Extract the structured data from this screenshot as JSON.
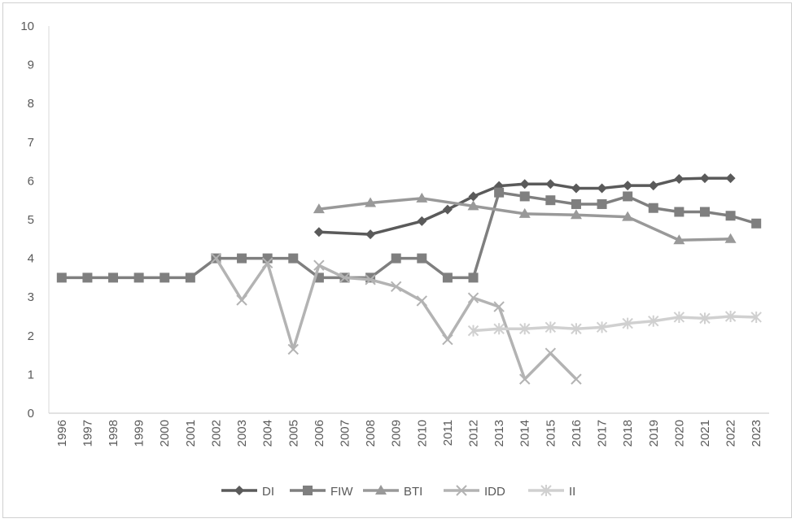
{
  "chart_data": {
    "type": "line",
    "title": "",
    "xlabel": "",
    "ylabel": "",
    "ylim": [
      0,
      10
    ],
    "yticks": [
      0,
      1,
      2,
      3,
      4,
      5,
      6,
      7,
      8,
      9,
      10
    ],
    "grid": false,
    "legend_position": "bottom",
    "categories": [
      "1996",
      "1997",
      "1998",
      "1999",
      "2000",
      "2001",
      "2002",
      "2003",
      "2004",
      "2005",
      "2006",
      "2007",
      "2008",
      "2009",
      "2010",
      "2011",
      "2012",
      "2013",
      "2014",
      "2015",
      "2016",
      "2017",
      "2018",
      "2019",
      "2020",
      "2021",
      "2022",
      "2023"
    ],
    "series": [
      {
        "name": "DI",
        "marker": "diamond",
        "color": "#5a5a5a",
        "values": [
          null,
          null,
          null,
          null,
          null,
          null,
          null,
          null,
          null,
          null,
          4.68,
          null,
          4.62,
          null,
          4.96,
          5.26,
          5.6,
          5.87,
          5.92,
          5.92,
          5.81,
          5.81,
          5.88,
          5.88,
          6.05,
          6.07,
          6.07,
          null
        ]
      },
      {
        "name": "FIW",
        "marker": "square",
        "color": "#7f7f7f",
        "values": [
          3.5,
          3.5,
          3.5,
          3.5,
          3.5,
          3.5,
          4,
          4,
          4,
          4,
          3.5,
          3.5,
          3.5,
          4,
          4,
          3.5,
          3.5,
          5.7,
          5.6,
          5.5,
          5.4,
          5.4,
          5.6,
          5.3,
          5.2,
          5.2,
          5.1,
          4.9
        ]
      },
      {
        "name": "BTI",
        "marker": "triangle",
        "color": "#999999",
        "values": [
          null,
          null,
          null,
          null,
          null,
          null,
          null,
          null,
          null,
          null,
          5.27,
          null,
          5.43,
          null,
          5.55,
          null,
          5.35,
          null,
          5.15,
          null,
          5.12,
          null,
          5.07,
          null,
          4.47,
          null,
          4.5,
          null
        ]
      },
      {
        "name": "IDD",
        "marker": "x",
        "color": "#b3b3b3",
        "values": [
          null,
          null,
          null,
          null,
          null,
          null,
          4.0,
          2.92,
          3.88,
          1.65,
          3.82,
          3.5,
          3.45,
          3.27,
          2.9,
          1.9,
          2.98,
          2.75,
          0.88,
          1.55,
          0.88,
          null,
          null,
          null,
          null,
          null,
          null,
          null
        ]
      },
      {
        "name": "II",
        "marker": "star",
        "color": "#d0d0d0",
        "values": [
          null,
          null,
          null,
          null,
          null,
          null,
          null,
          null,
          null,
          null,
          null,
          null,
          null,
          null,
          null,
          null,
          2.13,
          2.18,
          2.18,
          2.22,
          2.18,
          2.22,
          2.32,
          2.38,
          2.48,
          2.45,
          2.5,
          2.48
        ]
      }
    ]
  }
}
